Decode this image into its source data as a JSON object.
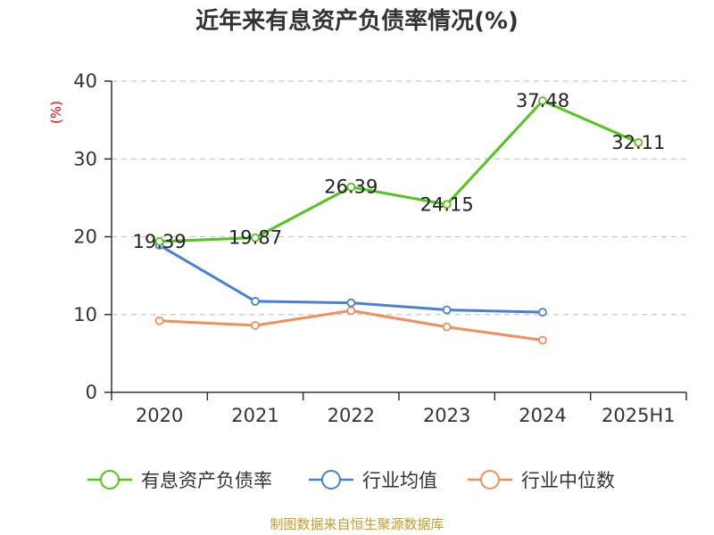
{
  "chart_data": {
    "type": "line",
    "title": "近年来有息资产负债率情况(%)",
    "ylabel": "(%)",
    "ylim": [
      0,
      40
    ],
    "yticks": [
      0,
      10,
      20,
      30,
      40
    ],
    "grid": true,
    "categories": [
      "2020",
      "2021",
      "2022",
      "2023",
      "2024",
      "2025H1"
    ],
    "series": [
      {
        "name": "有息资产负债率",
        "color": "#52c41a",
        "values": [
          19.39,
          19.87,
          26.39,
          24.15,
          37.48,
          32.11
        ],
        "labels": [
          "19.39",
          "19.87",
          "26.39",
          "24.15",
          "37.48",
          "32.11"
        ]
      },
      {
        "name": "行业均值",
        "color": "#4a7fd6",
        "values": [
          18.9,
          11.7,
          11.5,
          10.6,
          10.3,
          null
        ]
      },
      {
        "name": "行业中位数",
        "color": "#f28d5c",
        "values": [
          9.2,
          8.6,
          10.5,
          8.4,
          6.7,
          null
        ]
      }
    ],
    "legend_position": "bottom",
    "source": "制图数据来自恒生聚源数据库"
  }
}
